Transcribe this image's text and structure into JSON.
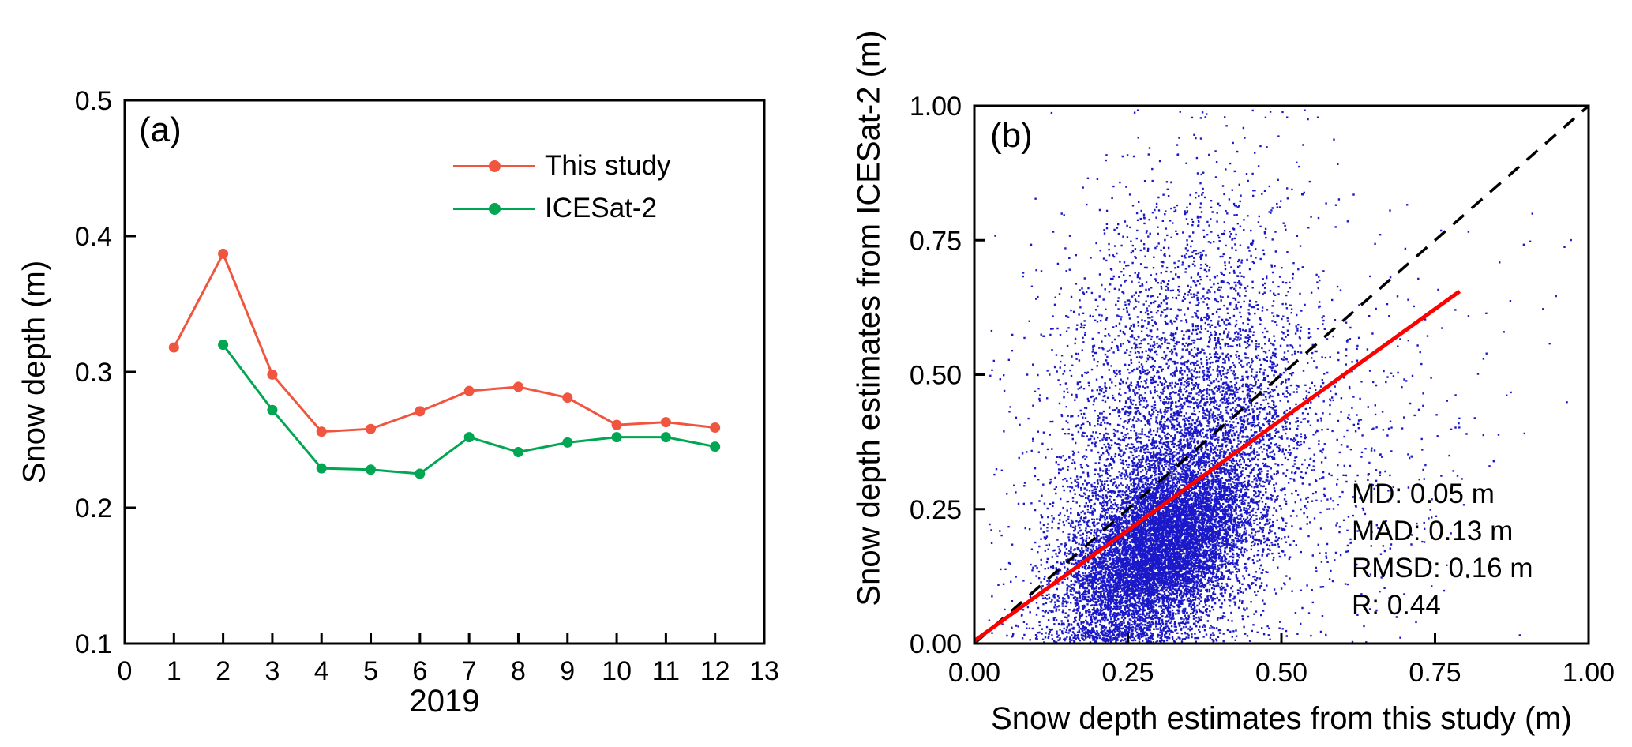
{
  "figure": {
    "background": "#ffffff",
    "panel_count": 2
  },
  "chart_data": [
    {
      "type": "line",
      "panel_label": "(a)",
      "xlabel": "2019",
      "ylabel": "Snow depth (m)",
      "xlim": [
        0,
        13
      ],
      "ylim": [
        0.1,
        0.5
      ],
      "xticks": [
        0,
        1,
        2,
        3,
        4,
        5,
        6,
        7,
        8,
        9,
        10,
        11,
        12,
        13
      ],
      "xtick_labels": [
        "0",
        "1",
        "2",
        "3",
        "4",
        "5",
        "6",
        "7",
        "8",
        "9",
        "10",
        "11",
        "12",
        "13"
      ],
      "yticks": [
        0.1,
        0.2,
        0.3,
        0.4,
        0.5
      ],
      "ytick_labels": [
        "0.1",
        "0.2",
        "0.3",
        "0.4",
        "0.5"
      ],
      "grid": false,
      "legend_position": "upper-right-inside",
      "series": [
        {
          "name": "This study",
          "color": "#F05540",
          "marker": "circle",
          "x": [
            1,
            2,
            3,
            4,
            5,
            6,
            7,
            8,
            9,
            10,
            11,
            12
          ],
          "y": [
            0.318,
            0.387,
            0.298,
            0.256,
            0.258,
            0.271,
            0.286,
            0.289,
            0.281,
            0.261,
            0.263,
            0.259
          ]
        },
        {
          "name": "ICESat-2",
          "color": "#00A651",
          "marker": "circle",
          "x": [
            2,
            3,
            4,
            5,
            6,
            7,
            8,
            9,
            10,
            11,
            12
          ],
          "y": [
            0.32,
            0.272,
            0.229,
            0.228,
            0.225,
            0.252,
            0.241,
            0.248,
            0.252,
            0.252,
            0.245
          ]
        }
      ]
    },
    {
      "type": "scatter",
      "panel_label": "(b)",
      "xlabel": "Snow depth estimates from this study (m)",
      "ylabel": "Snow depth estimates from ICESat-2 (m)",
      "xlim": [
        0,
        1
      ],
      "ylim": [
        0,
        1
      ],
      "xticks": [
        0,
        0.25,
        0.5,
        0.75,
        1
      ],
      "xtick_labels": [
        "0.00",
        "0.25",
        "0.50",
        "0.75",
        "1.00"
      ],
      "yticks": [
        0,
        0.25,
        0.5,
        0.75,
        1
      ],
      "ytick_labels": [
        "0.00",
        "0.25",
        "0.50",
        "0.75",
        "1.00"
      ],
      "grid": false,
      "point_color": "#1A18C8",
      "identity_line": {
        "color": "#000000",
        "style": "dashed",
        "from": [
          0,
          0
        ],
        "to": [
          1,
          1
        ]
      },
      "fit_line": {
        "color": "#FF0000",
        "style": "solid",
        "from": [
          0,
          0.005
        ],
        "to": [
          0.79,
          0.655
        ]
      },
      "stats": [
        "MD: 0.05 m",
        "MAD: 0.13 m",
        "RMSD: 0.16 m",
        "R: 0.44"
      ],
      "point_cloud_model": {
        "n": 15000,
        "seed": 20190101,
        "clusters": [
          {
            "weight": 0.54,
            "x_mean": 0.3,
            "x_sd": 0.075,
            "y_intercept": 0.02,
            "y_slope": 0.5,
            "y_noise": 0.075
          },
          {
            "weight": 0.26,
            "x_mean": 0.34,
            "x_sd": 0.095,
            "y_intercept": 0.12,
            "y_slope": 0.6,
            "y_noise": 0.13
          },
          {
            "weight": 0.13,
            "x_mean": 0.31,
            "x_sd": 0.105,
            "y_intercept": 0.38,
            "y_slope": 0.55,
            "y_noise": 0.17
          },
          {
            "weight": 0.07,
            "x_mean": 0.48,
            "x_sd": 0.17,
            "y_intercept": 0.05,
            "y_slope": 0.5,
            "y_noise": 0.16
          }
        ],
        "x_clip": [
          0.02,
          0.97
        ],
        "y_clip": [
          0.004,
          0.996
        ]
      }
    }
  ]
}
